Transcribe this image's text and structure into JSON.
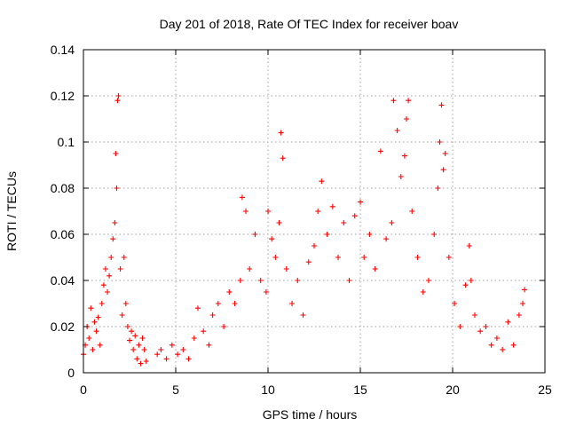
{
  "chart_data": {
    "type": "scatter",
    "title": "Day 201 of 2018, Rate Of TEC Index for receiver boav",
    "xlabel": "GPS time / hours",
    "ylabel": "ROTI / TECUs",
    "xlim": [
      0,
      25
    ],
    "ylim": [
      0,
      0.14
    ],
    "x_ticks": [
      "0",
      "5",
      "10",
      "15",
      "20",
      "25"
    ],
    "y_ticks": [
      "0",
      "0.02",
      "0.04",
      "0.06",
      "0.08",
      "0.1",
      "0.12",
      "0.14"
    ],
    "grid": true,
    "marker": "plus",
    "color": "#ff0000",
    "series": [
      {
        "x": [
          0.0,
          0.1,
          0.2,
          0.3,
          0.4,
          0.5,
          0.6,
          0.7,
          0.8,
          0.9,
          1.0,
          1.1,
          1.2,
          1.3,
          1.4,
          1.5,
          1.6,
          1.7,
          1.75,
          1.8,
          1.85,
          1.9,
          2.0,
          2.1,
          2.2,
          2.3,
          2.4,
          2.5,
          2.6,
          2.7,
          2.8,
          2.9,
          3.0,
          3.1,
          3.2,
          3.3,
          3.4,
          4.0,
          4.2,
          4.5,
          4.8,
          5.1,
          5.4,
          5.7,
          6.0,
          6.2,
          6.5,
          6.8,
          7.0,
          7.3,
          7.6,
          7.9,
          8.2,
          8.5,
          8.6,
          8.8,
          9.0,
          9.3,
          9.6,
          9.9,
          10.0,
          10.2,
          10.4,
          10.6,
          10.7,
          10.8,
          11.0,
          11.3,
          11.6,
          11.9,
          12.2,
          12.5,
          12.7,
          12.9,
          13.2,
          13.5,
          13.8,
          14.1,
          14.4,
          14.7,
          15.0,
          15.2,
          15.5,
          15.8,
          16.1,
          16.4,
          16.7,
          16.8,
          17.0,
          17.2,
          17.4,
          17.5,
          17.6,
          17.8,
          18.1,
          18.4,
          18.7,
          19.0,
          19.2,
          19.3,
          19.4,
          19.5,
          19.6,
          19.8,
          20.1,
          20.4,
          20.7,
          20.9,
          21.0,
          21.2,
          21.5,
          21.8,
          22.1,
          22.4,
          22.7,
          23.0,
          23.3,
          23.6,
          23.8,
          23.9
        ],
        "y": [
          0.008,
          0.012,
          0.02,
          0.015,
          0.028,
          0.01,
          0.022,
          0.018,
          0.024,
          0.012,
          0.03,
          0.038,
          0.045,
          0.035,
          0.042,
          0.05,
          0.058,
          0.065,
          0.095,
          0.08,
          0.118,
          0.12,
          0.045,
          0.025,
          0.05,
          0.03,
          0.02,
          0.014,
          0.018,
          0.01,
          0.016,
          0.006,
          0.012,
          0.004,
          0.015,
          0.01,
          0.005,
          0.008,
          0.01,
          0.006,
          0.012,
          0.008,
          0.01,
          0.006,
          0.015,
          0.028,
          0.018,
          0.012,
          0.025,
          0.03,
          0.02,
          0.035,
          0.03,
          0.04,
          0.076,
          0.07,
          0.045,
          0.06,
          0.04,
          0.035,
          0.07,
          0.058,
          0.05,
          0.065,
          0.104,
          0.093,
          0.045,
          0.03,
          0.04,
          0.025,
          0.048,
          0.055,
          0.07,
          0.083,
          0.06,
          0.072,
          0.05,
          0.065,
          0.04,
          0.068,
          0.074,
          0.05,
          0.06,
          0.045,
          0.096,
          0.058,
          0.065,
          0.118,
          0.105,
          0.085,
          0.094,
          0.11,
          0.118,
          0.07,
          0.05,
          0.035,
          0.04,
          0.06,
          0.08,
          0.1,
          0.116,
          0.088,
          0.095,
          0.05,
          0.03,
          0.02,
          0.038,
          0.055,
          0.04,
          0.025,
          0.018,
          0.02,
          0.012,
          0.015,
          0.01,
          0.022,
          0.012,
          0.025,
          0.03,
          0.036
        ]
      }
    ]
  }
}
